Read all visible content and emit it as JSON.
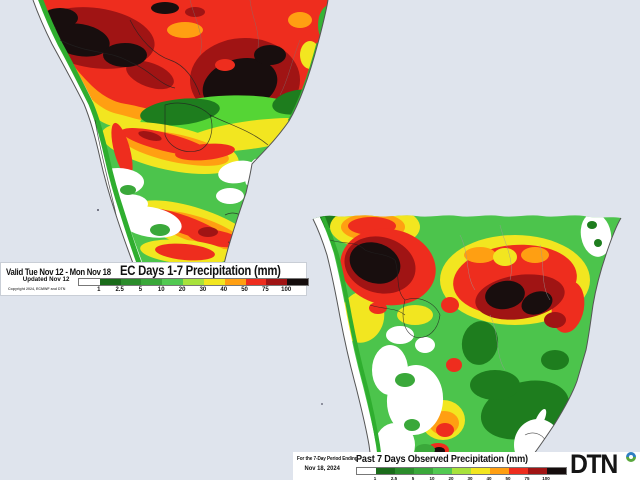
{
  "colors": {
    "background": "#dfe4ed",
    "land_none": "#ffffff",
    "coastline": "#555555",
    "dtn_black": "#151515",
    "dtn_globe_blue": "#2f7fc1",
    "dtn_globe_green": "#5aa73e"
  },
  "scale": {
    "tick_labels": [
      "1",
      "2.5",
      "5",
      "10",
      "20",
      "30",
      "40",
      "50",
      "75",
      "100"
    ],
    "segment_colors": [
      "#ffffff",
      "#1a6b1a",
      "#2b8c2b",
      "#3aa83a",
      "#52c952",
      "#a8e23c",
      "#f2e620",
      "#ff9f12",
      "#ee2d1e",
      "#a01414",
      "#140c0c"
    ]
  },
  "forecast_panel": {
    "valid_text": "Valid Tue Nov 12 - Mon Nov 18",
    "title": "EC Days 1-7 Precipitation (mm)",
    "updated_text": "Updated Nov 12",
    "copyright_text": "Copyright 2024, ECMWF and DTN",
    "units": "mm"
  },
  "observed_panel": {
    "period_line1": "For the 7-Day Period Ending",
    "period_line2": "Nov 18, 2024",
    "title": "Past 7 Days Observed Precipitation (mm)",
    "units": "mm"
  },
  "branding": {
    "logo_text": "DTN"
  }
}
